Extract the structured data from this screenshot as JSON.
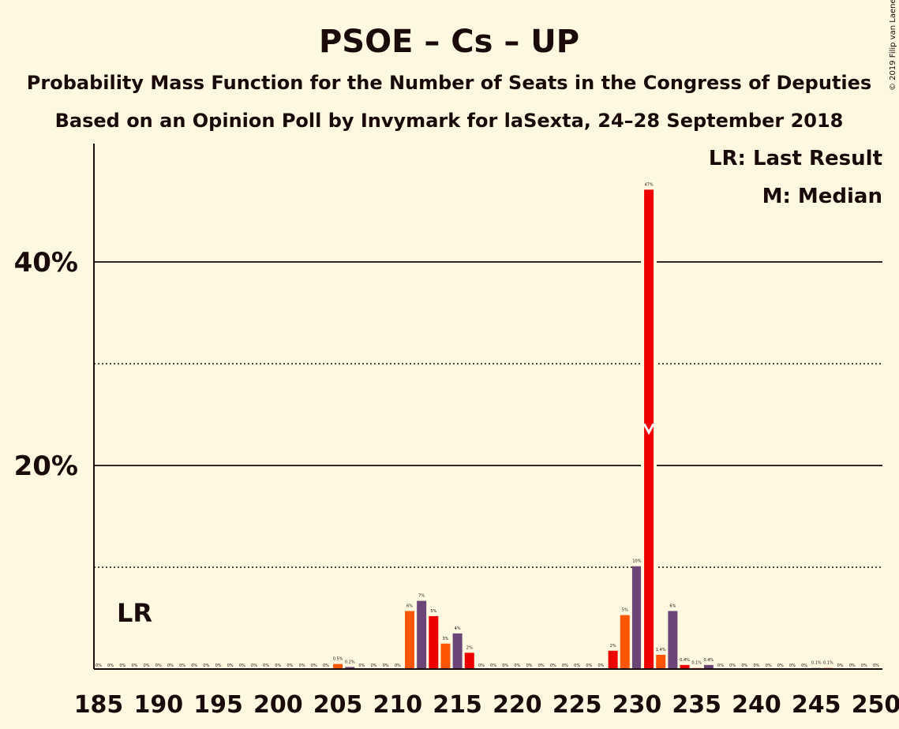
{
  "title": "PSOE – Cs – UP",
  "subtitle1": "Probability Mass Function for the Number of Seats in the Congress of Deputies",
  "subtitle2": "Based on an Opinion Poll by Invymark for laSexta, 24–28 September 2018",
  "copyright": "© 2019 Filip van Laenen",
  "legend": {
    "lr": "LR: Last Result",
    "m": "M: Median"
  },
  "lr_marker": "LR",
  "colors": {
    "background": "#FFF8E1",
    "primary": "#EE0000",
    "secondary": "#FF5500",
    "tertiary": "#6B4478",
    "text": "#1a0a0a"
  },
  "chart_data": {
    "type": "bar",
    "x_range": [
      185,
      250
    ],
    "x_ticks": [
      "185",
      "190",
      "195",
      "200",
      "205",
      "210",
      "215",
      "220",
      "225",
      "230",
      "235",
      "240",
      "245",
      "250"
    ],
    "y_ticks": [
      "20%",
      "40%"
    ],
    "ylim": [
      0,
      51
    ],
    "gridlines_solid": [
      20,
      40
    ],
    "gridlines_dotted": [
      10,
      30
    ],
    "last_result_seats": 188,
    "median_seats": 231,
    "bars": [
      {
        "x": 205,
        "value": 0.5,
        "label": "0.5%",
        "color": "secondary"
      },
      {
        "x": 206,
        "value": 0.2,
        "label": "0.2%",
        "color": "tertiary"
      },
      {
        "x": 211,
        "value": 5.7,
        "label": "6%",
        "color": "secondary"
      },
      {
        "x": 212,
        "value": 6.7,
        "label": "7%",
        "color": "tertiary"
      },
      {
        "x": 213,
        "value": 5.2,
        "label": "5%",
        "color": "primary"
      },
      {
        "x": 214,
        "value": 2.5,
        "label": "3%",
        "color": "secondary"
      },
      {
        "x": 215,
        "value": 3.5,
        "label": "4%",
        "color": "tertiary"
      },
      {
        "x": 216,
        "value": 1.6,
        "label": "2%",
        "color": "primary"
      },
      {
        "x": 228,
        "value": 1.8,
        "label": "2%",
        "color": "primary"
      },
      {
        "x": 229,
        "value": 5.3,
        "label": "5%",
        "color": "secondary"
      },
      {
        "x": 230,
        "value": 10.1,
        "label": "10%",
        "color": "tertiary"
      },
      {
        "x": 231,
        "value": 47.1,
        "label": "47%",
        "color": "primary"
      },
      {
        "x": 232,
        "value": 1.4,
        "label": "1.4%",
        "color": "secondary"
      },
      {
        "x": 233,
        "value": 5.7,
        "label": "6%",
        "color": "tertiary"
      },
      {
        "x": 234,
        "value": 0.4,
        "label": "0.4%",
        "color": "primary"
      },
      {
        "x": 235,
        "value": 0.1,
        "label": "0.1%",
        "color": "secondary"
      },
      {
        "x": 236,
        "value": 0.4,
        "label": "0.4%",
        "color": "tertiary"
      },
      {
        "x": 245,
        "value": 0.1,
        "label": "0.1%",
        "color": "tertiary"
      },
      {
        "x": 246,
        "value": 0.1,
        "label": "0.1%",
        "color": "primary"
      }
    ],
    "zero_label": "0%"
  }
}
